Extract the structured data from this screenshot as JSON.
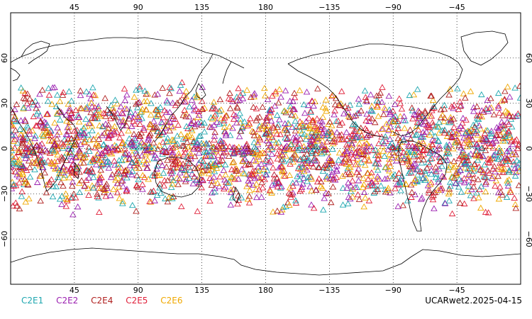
{
  "map": {
    "projection": "equirectangular",
    "lon_range": [
      0,
      360
    ],
    "lat_range": [
      -90,
      90
    ],
    "top_lon_ticks": [
      "45",
      "90",
      "135",
      "180",
      "−135",
      "−90",
      "−45"
    ],
    "bottom_lon_ticks": [
      "45",
      "90",
      "135",
      "180",
      "−135",
      "−90",
      "−45"
    ],
    "lat_ticks_left": [
      "60",
      "30",
      "0",
      "−30",
      "−60"
    ],
    "lat_ticks_right": [
      "60",
      "30",
      "0",
      "−30",
      "−60"
    ],
    "grid": "dotted",
    "coastline_color": "#000000",
    "marker": "open-triangle",
    "occultation_band_lat": [
      -45,
      45
    ]
  },
  "legend": [
    {
      "label": "C2E1",
      "color": "#1fa7b0"
    },
    {
      "label": "C2E2",
      "color": "#9b1fb0"
    },
    {
      "label": "C2E4",
      "color": "#b0201f"
    },
    {
      "label": "C2E5",
      "color": "#e0203a"
    },
    {
      "label": "C2E6",
      "color": "#f0a800"
    }
  ],
  "stamp": "UCARwet2.2025-04-15"
}
